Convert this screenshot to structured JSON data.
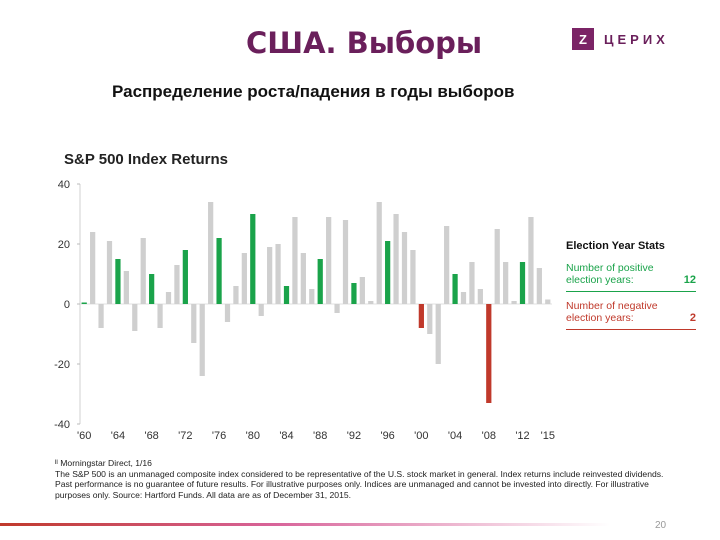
{
  "slide": {
    "title": "США. Выборы",
    "subtitle": "Распределение роста/падения в годы выборов",
    "page_number": "20"
  },
  "logo": {
    "mark": "Z",
    "text": "ЦЕРИХ",
    "icon": "zerih-logo-icon"
  },
  "colors": {
    "title": "#6a1f5b",
    "non_election": "#cfcfcf",
    "positive_election": "#1aa34a",
    "negative_election": "#c0392b"
  },
  "stats": {
    "title": "Election Year Stats",
    "positive_label": "Number of positive election years:",
    "positive_value": "12",
    "negative_label": "Number of negative election years:",
    "negative_value": "2"
  },
  "footnotes": {
    "source": "ᴵᴵ Morningstar Direct, 1/16",
    "text": "The S&P 500 is an unmanaged composite index considered to be representative of the U.S. stock market in general. Index returns include reinvested dividends. Past performance is no guarantee of future results. For illustrative purposes only. Indices are unmanaged and cannot be invested into directly. For illustrative purposes only. Source: Hartford Funds. All data are as of December 31, 2015."
  },
  "chart_data": {
    "type": "bar",
    "title": "S&P 500 Index Returns",
    "ylim": [
      -40,
      40
    ],
    "yticks": [
      40,
      20,
      0,
      -20,
      -40
    ],
    "x_tick_labels": [
      "'60",
      "'64",
      "'68",
      "'72",
      "'76",
      "'80",
      "'84",
      "'88",
      "'92",
      "'96",
      "'00",
      "'04",
      "'08",
      "'12",
      "'15"
    ],
    "x_tick_years": [
      1960,
      1964,
      1968,
      1972,
      1976,
      1980,
      1984,
      1988,
      1992,
      1996,
      2000,
      2004,
      2008,
      2012,
      2015
    ],
    "grid": false,
    "legend": "right",
    "years": [
      1960,
      1961,
      1962,
      1963,
      1964,
      1965,
      1966,
      1967,
      1968,
      1969,
      1970,
      1971,
      1972,
      1973,
      1974,
      1975,
      1976,
      1977,
      1978,
      1979,
      1980,
      1981,
      1982,
      1983,
      1984,
      1985,
      1986,
      1987,
      1988,
      1989,
      1990,
      1991,
      1992,
      1993,
      1994,
      1995,
      1996,
      1997,
      1998,
      1999,
      2000,
      2001,
      2002,
      2003,
      2004,
      2005,
      2006,
      2007,
      2008,
      2009,
      2010,
      2011,
      2012,
      2013,
      2014,
      2015
    ],
    "values": [
      0.5,
      24,
      -8,
      21,
      15,
      11,
      -9,
      22,
      10,
      -8,
      4,
      13,
      18,
      -13,
      -24,
      34,
      22,
      -6,
      6,
      17,
      30,
      -4,
      19,
      20,
      6,
      29,
      17,
      5,
      15,
      29,
      -3,
      28,
      7,
      9,
      1,
      34,
      21,
      30,
      24,
      18,
      -8,
      -10,
      -20,
      26,
      10,
      4,
      14,
      5,
      -33,
      25,
      14,
      1,
      14,
      29,
      12,
      1.5
    ],
    "election_years": [
      1960,
      1964,
      1968,
      1972,
      1976,
      1980,
      1984,
      1988,
      1992,
      1996,
      2000,
      2004,
      2008,
      2012
    ]
  }
}
